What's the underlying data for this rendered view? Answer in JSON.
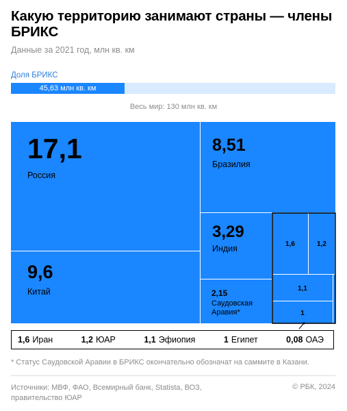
{
  "header": {
    "title": "Какую территорию занимают страны — члены БРИКС",
    "subtitle": "Данные за 2021 год, млн кв. км"
  },
  "share": {
    "label": "Доля БРИКС",
    "value": 45.63,
    "total": 130,
    "value_text": "45,63 млн кв. км",
    "total_text": "Весь мир: 130 млн кв. км"
  },
  "colors": {
    "accent": "#1a86ff",
    "light_accent": "#d8ebff",
    "label_blue": "#2f7fd9",
    "muted": "#8c8c8c"
  },
  "chart_data": {
    "type": "treemap",
    "units": "млн кв. км",
    "items": [
      {
        "name": "Россия",
        "value": 17.1,
        "value_text": "17,1"
      },
      {
        "name": "Китай",
        "value": 9.6,
        "value_text": "9,6"
      },
      {
        "name": "Бразилия",
        "value": 8.51,
        "value_text": "8,51"
      },
      {
        "name": "Индия",
        "value": 3.29,
        "value_text": "3,29"
      },
      {
        "name": "Саудовская Аравия*",
        "value": 2.15,
        "value_text": "2,15"
      },
      {
        "name": "Иран",
        "value": 1.6,
        "value_text": "1,6"
      },
      {
        "name": "ЮАР",
        "value": 1.2,
        "value_text": "1,2"
      },
      {
        "name": "Эфиопия",
        "value": 1.1,
        "value_text": "1,1"
      },
      {
        "name": "Египет",
        "value": 1,
        "value_text": "1"
      },
      {
        "name": "ОАЭ",
        "value": 0.08,
        "value_text": "0,08"
      }
    ]
  },
  "legend": [
    {
      "value_text": "1,6",
      "name": "Иран"
    },
    {
      "value_text": "1,2",
      "name": "ЮАР"
    },
    {
      "value_text": "1,1",
      "name": "Эфиопия"
    },
    {
      "value_text": "1",
      "name": "Египет"
    },
    {
      "value_text": "0,08",
      "name": "ОАЭ"
    }
  ],
  "footer": {
    "footnote": "* Статус Саудовской Аравии в БРИКС окончательно обозначат на саммите в Казани.",
    "sources": "Источники: МВФ, ФАО, Всемирный банк, Statista, ВОЗ, правительство ЮАР",
    "copyright": "© РБК, 2024"
  }
}
